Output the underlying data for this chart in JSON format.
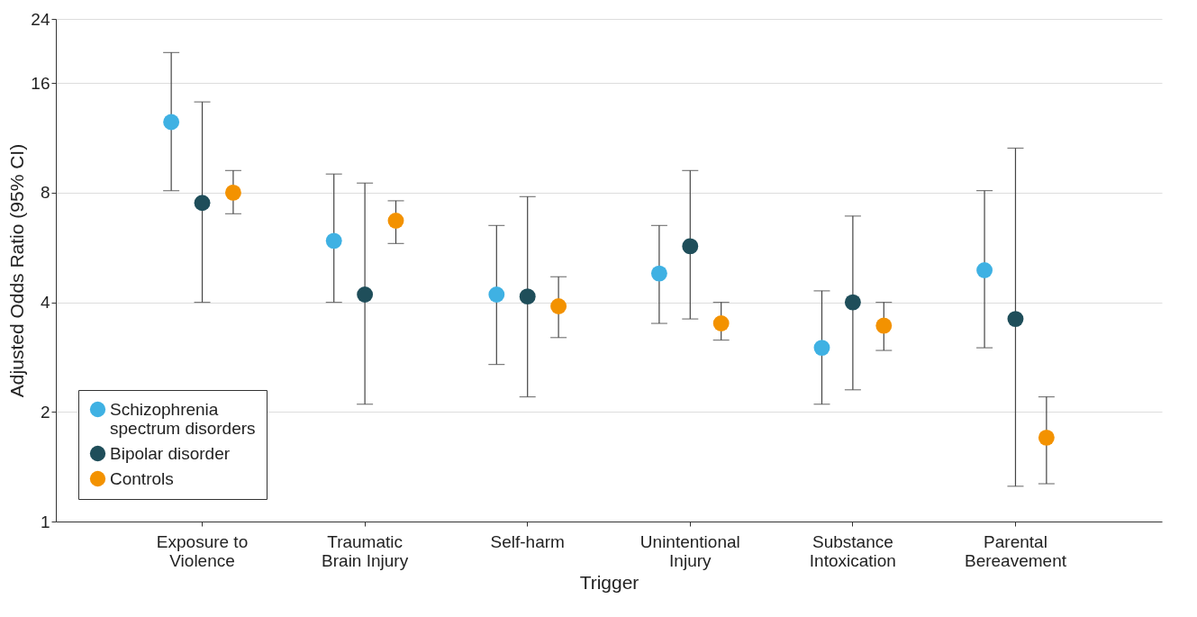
{
  "chart_data": {
    "type": "scatter",
    "xlabel": "Trigger",
    "ylabel": "Adjusted Odds Ratio (95% CI)",
    "categories": [
      "Exposure to\nViolence",
      "Traumatic\nBrain Injury",
      "Self-harm",
      "Unintentional\nInjury",
      "Substance\nIntoxication",
      "Parental\nBereavement"
    ],
    "series": [
      {
        "name": "Schizophrenia\nspectrum disorders",
        "color": "#3fb1e3",
        "values": [
          12.5,
          5.9,
          4.2,
          4.8,
          3.0,
          4.9
        ],
        "errors": [
          [
            8.1,
            19.4
          ],
          [
            4.0,
            9.0
          ],
          [
            2.7,
            6.5
          ],
          [
            3.5,
            6.5
          ],
          [
            2.1,
            4.3
          ],
          [
            3.0,
            8.1
          ]
        ]
      },
      {
        "name": "Bipolar disorder",
        "color": "#1f4e5a",
        "values": [
          7.5,
          4.2,
          4.15,
          5.7,
          4.0,
          3.6
        ],
        "errors": [
          [
            4.0,
            14.2
          ],
          [
            2.1,
            8.5
          ],
          [
            2.2,
            7.8
          ],
          [
            3.6,
            9.2
          ],
          [
            2.3,
            6.9
          ],
          [
            1.25,
            10.6
          ]
        ]
      },
      {
        "name": "Controls",
        "color": "#f39200",
        "values": [
          8.0,
          6.7,
          3.9,
          3.5,
          3.45,
          1.7
        ],
        "errors": [
          [
            7.0,
            9.2
          ],
          [
            5.8,
            7.6
          ],
          [
            3.2,
            4.7
          ],
          [
            3.15,
            4.0
          ],
          [
            2.95,
            4.0
          ],
          [
            1.27,
            2.2
          ]
        ]
      }
    ],
    "log": "y",
    "ylim": [
      1,
      24
    ],
    "yticks": [
      1,
      2,
      4,
      8,
      16,
      24
    ],
    "grid": "y",
    "legend": "bottom left",
    "marker": "circle"
  }
}
